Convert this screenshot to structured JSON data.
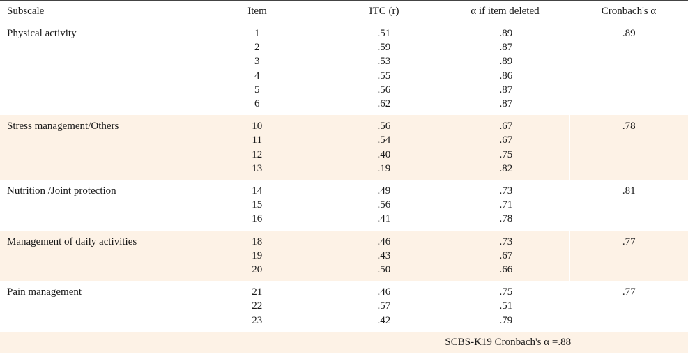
{
  "headers": {
    "subscale": "Subscale",
    "item": "Item",
    "itc": "ITC (r)",
    "alpha_deleted": "α  if item deleted",
    "cronbach": "Cronbach's  α"
  },
  "groups": [
    {
      "subscale": "Physical activity",
      "cronbach": ".89",
      "items": [
        "1",
        "2",
        "3",
        "4",
        "5",
        "6"
      ],
      "itc": [
        ".51",
        ".59",
        ".53",
        ".55",
        ".56",
        ".62"
      ],
      "alpha_deleted": [
        ".89",
        ".87",
        ".89",
        ".86",
        ".87",
        ".87"
      ]
    },
    {
      "subscale": "Stress management/Others",
      "cronbach": ".78",
      "items": [
        "10",
        "11",
        "12",
        "13"
      ],
      "itc": [
        ".56",
        ".54",
        ".40",
        ".19"
      ],
      "alpha_deleted": [
        ".67",
        ".67",
        ".75",
        ".82"
      ]
    },
    {
      "subscale": "Nutrition /Joint protection",
      "cronbach": ".81",
      "items": [
        "14",
        "15",
        "16"
      ],
      "itc": [
        ".49",
        ".56",
        ".41"
      ],
      "alpha_deleted": [
        ".73",
        ".71",
        ".78"
      ]
    },
    {
      "subscale": "Management of daily activities",
      "cronbach": ".77",
      "items": [
        "18",
        "19",
        "20"
      ],
      "itc": [
        ".46",
        ".43",
        ".50"
      ],
      "alpha_deleted": [
        ".73",
        ".67",
        ".66"
      ]
    },
    {
      "subscale": "Pain management",
      "cronbach": ".77",
      "items": [
        "21",
        "22",
        "23"
      ],
      "itc": [
        ".46",
        ".57",
        ".42"
      ],
      "alpha_deleted": [
        ".75",
        ".51",
        ".79"
      ]
    }
  ],
  "footer": {
    "overall": "SCBS-K19  Cronbach's  α =.88"
  }
}
